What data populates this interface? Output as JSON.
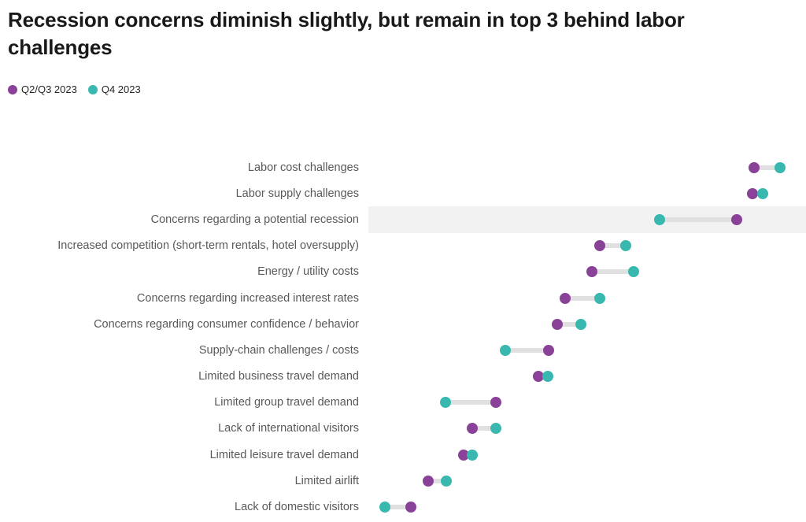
{
  "page": {
    "title": "Recession concerns diminish slightly, but remain in top 3 behind labor challenges"
  },
  "colors": {
    "series_q2q3": "#8a4198",
    "series_q4": "#38b8af",
    "connector": "#e0e0e0",
    "row_highlight": "#f2f2f2",
    "label_text": "#595959",
    "title_text": "#191919"
  },
  "chart_data": {
    "type": "dumbbell",
    "orientation": "horizontal",
    "title": "Recession concerns diminish slightly, but remain in top 3 behind labor challenges",
    "xlabel": "",
    "ylabel": "",
    "xlim": [
      0,
      100
    ],
    "grid": false,
    "x_axis_visible": false,
    "legend_position": "top-left",
    "categories": [
      "Labor cost challenges",
      "Labor supply challenges",
      "Concerns regarding a potential recession",
      "Increased competition (short-term rentals, hotel oversupply)",
      "Energy / utility costs",
      "Concerns regarding increased interest rates",
      "Concerns regarding consumer confidence / behavior",
      "Supply-chain challenges / costs",
      "Limited business travel demand",
      "Limited group travel demand",
      "Lack of international visitors",
      "Limited leisure travel demand",
      "Limited airlift",
      "Lack of domestic visitors"
    ],
    "series": [
      {
        "name": "Q2/Q3 2023",
        "color": "#8a4198",
        "values": [
          88.1,
          87.8,
          84.2,
          52.9,
          51.1,
          45.0,
          43.2,
          41.2,
          38.8,
          29.1,
          23.7,
          21.8,
          13.7,
          9.7
        ]
      },
      {
        "name": "Q4 2023",
        "color": "#38b8af",
        "values": [
          94.1,
          90.1,
          66.5,
          58.8,
          60.6,
          52.9,
          48.6,
          31.3,
          41.0,
          17.6,
          29.1,
          23.7,
          17.8,
          3.8
        ]
      }
    ],
    "highlighted_category_index": 2,
    "highlighted_category": "Concerns regarding a potential recession"
  }
}
